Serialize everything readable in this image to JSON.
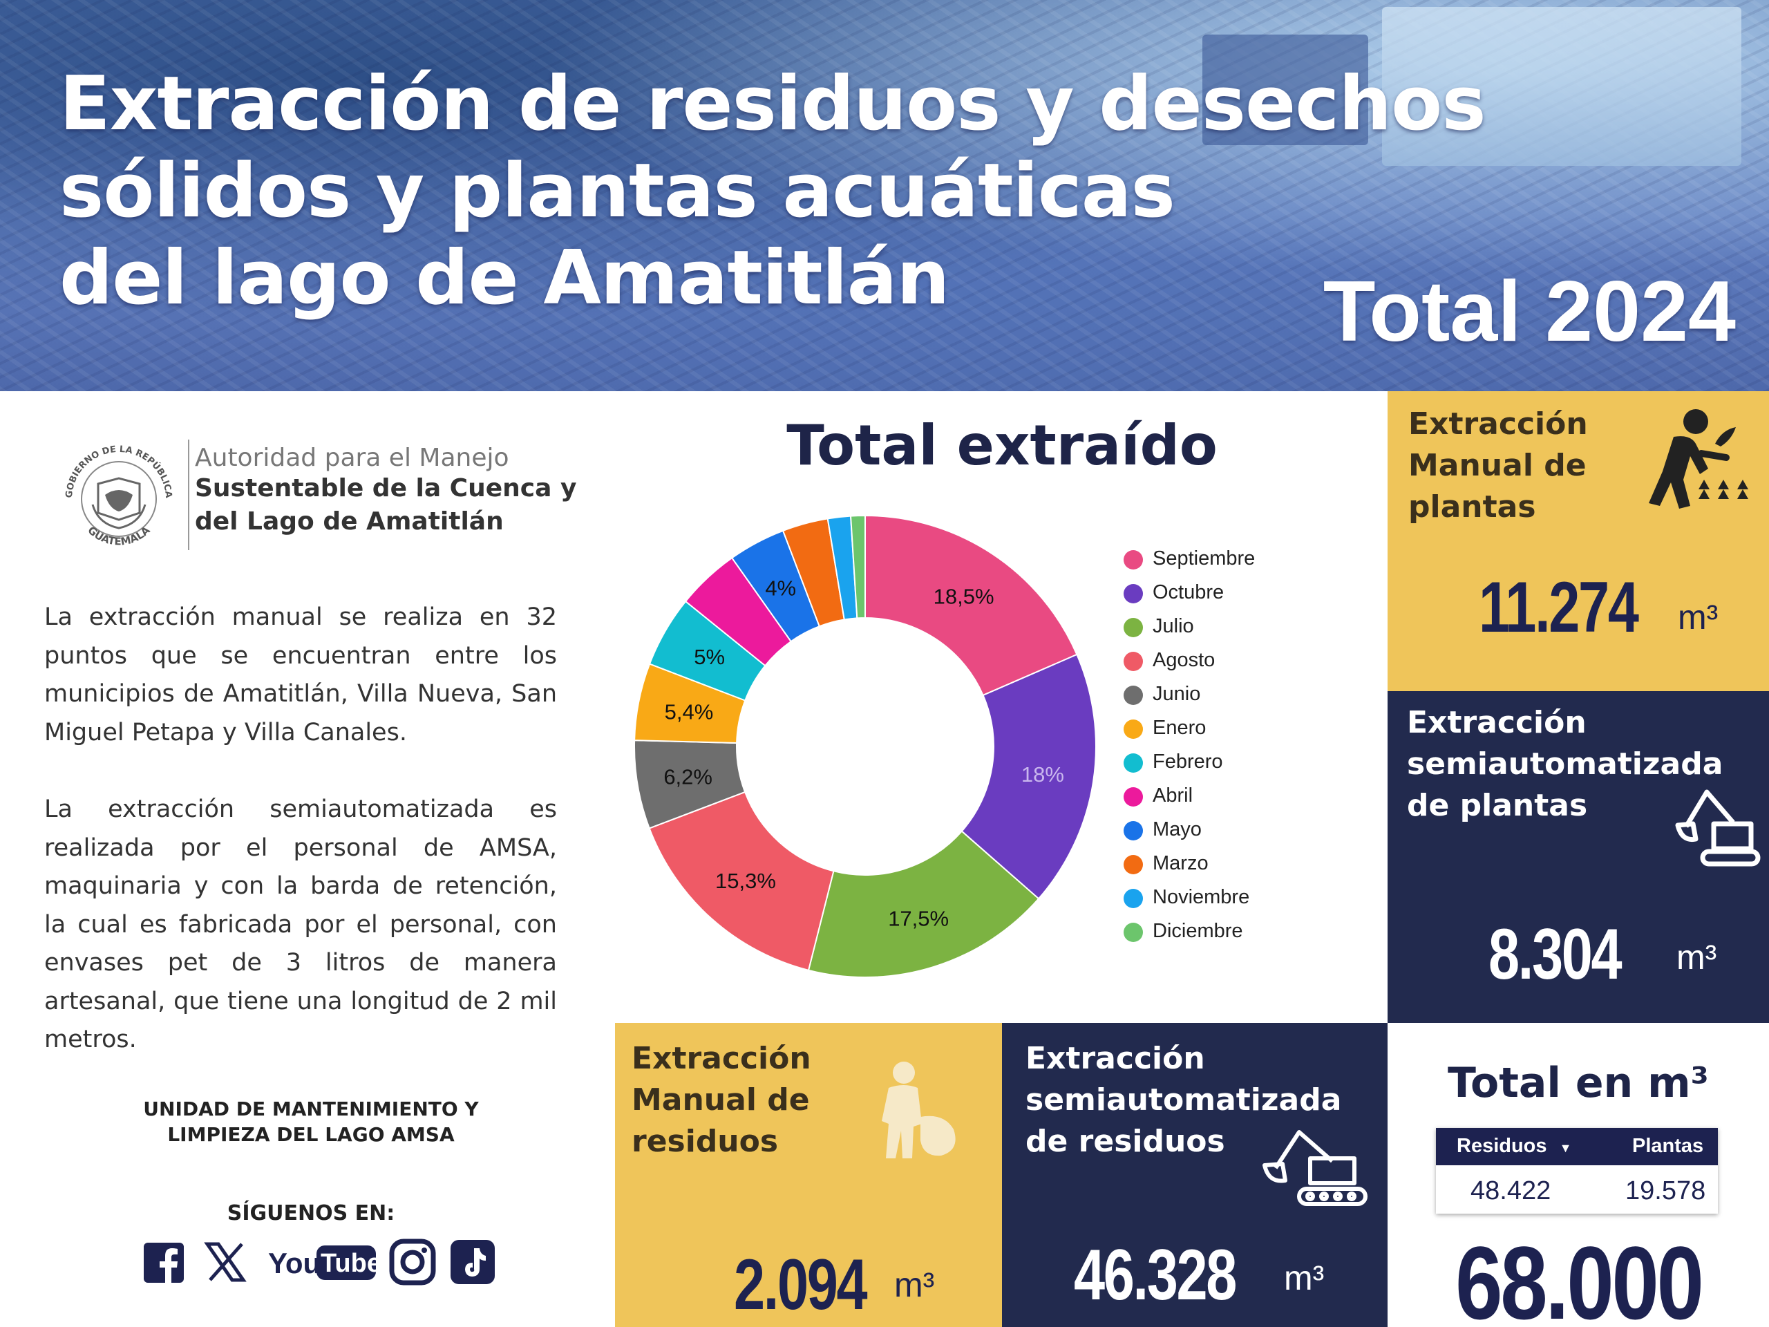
{
  "banner": {
    "title_lines": [
      "Extracción de residuos y desechos",
      "sólidos y plantas acuáticas",
      "del lago de Amatitlán"
    ],
    "total_label": "Total 2024"
  },
  "logo": {
    "seal_top_text": "GOBIERNO DE LA REPÚBLICA",
    "seal_bottom_text": "GUATEMALA",
    "line1": "Autoridad para el Manejo",
    "line2": "Sustentable de la Cuenca y",
    "line3": "del  Lago de Amatitlán"
  },
  "paragraphs": [
    "La extracción manual se realiza en 32 puntos que se encuentran entre los municipios de Amatitlán, Villa Nueva, San Miguel Petapa y Villa Canales.",
    "La extracción semiautomatizada es realizada por el personal de AMSA, maquinaria y con la barda de retención, la cual es fabricada por el personal, con envases pet de 3 litros de manera artesanal, que tiene una longitud de 2 mil metros."
  ],
  "unit": {
    "line1": "UNIDAD DE MANTENIMIENTO Y",
    "line2": "LIMPIEZA DEL LAGO AMSA"
  },
  "social": {
    "label": "SÍGUENOS EN:",
    "icons": [
      "facebook-icon",
      "x-icon",
      "youtube-icon",
      "instagram-icon",
      "tiktok-icon"
    ],
    "youtube_text_a": "You",
    "youtube_text_b": "Tube"
  },
  "chart_data": {
    "type": "pie",
    "title": "Total extraído",
    "donut": true,
    "legend_position": "right",
    "slices": [
      {
        "label": "Septiembre",
        "value": 18.5,
        "display": "18,5%",
        "color": "#e94a82"
      },
      {
        "label": "Octubre",
        "value": 18.0,
        "display": "18%",
        "color": "#6a3cc0"
      },
      {
        "label": "Julio",
        "value": 17.5,
        "display": "17,5%",
        "color": "#7cb342"
      },
      {
        "label": "Agosto",
        "value": 15.3,
        "display": "15,3%",
        "color": "#ef5a66"
      },
      {
        "label": "Junio",
        "value": 6.2,
        "display": "6,2%",
        "color": "#6e6e6e"
      },
      {
        "label": "Enero",
        "value": 5.4,
        "display": "5,4%",
        "color": "#f9a916"
      },
      {
        "label": "Febrero",
        "value": 5.0,
        "display": "5%",
        "color": "#12bdd0"
      },
      {
        "label": "Abril",
        "value": 4.4,
        "display": "",
        "color": "#ec1a9c"
      },
      {
        "label": "Mayo",
        "value": 4.0,
        "display": "4%",
        "color": "#1a73e8"
      },
      {
        "label": "Marzo",
        "value": 3.2,
        "display": "",
        "color": "#f26b12"
      },
      {
        "label": "Noviembre",
        "value": 1.6,
        "display": "",
        "color": "#1aa3ee"
      },
      {
        "label": "Diciembre",
        "value": 1.0,
        "display": "",
        "color": "#6cc56c"
      }
    ]
  },
  "panels": {
    "manual_plants": {
      "title": [
        "Extracción",
        "Manual de",
        "plantas"
      ],
      "value": "11.274",
      "unit": "m³",
      "icon": "person-harvesting-icon"
    },
    "semi_plants": {
      "title": [
        "Extracción",
        "semiautomatizada",
        "de plantas"
      ],
      "value": "8.304",
      "unit": "m³",
      "icon": "excavator-icon"
    },
    "manual_waste": {
      "title": [
        "Extracción",
        "Manual de",
        "residuos"
      ],
      "value": "2.094",
      "unit": "m³",
      "icon": "worker-with-bag-icon"
    },
    "semi_waste": {
      "title": [
        "Extracción",
        "semiautomatizada",
        "de residuos"
      ],
      "value": "46.328",
      "unit": "m³",
      "icon": "excavator-icon"
    }
  },
  "totals": {
    "title": "Total en m³",
    "residuos_label": "Residuos",
    "plantas_label": "Plantas",
    "residuos_value": "48.422",
    "plantas_value": "19.578",
    "grand_total": "68.000"
  },
  "colors": {
    "navy": "#222a4e",
    "yellow": "#efc55a",
    "dark_text": "#1d2250"
  }
}
